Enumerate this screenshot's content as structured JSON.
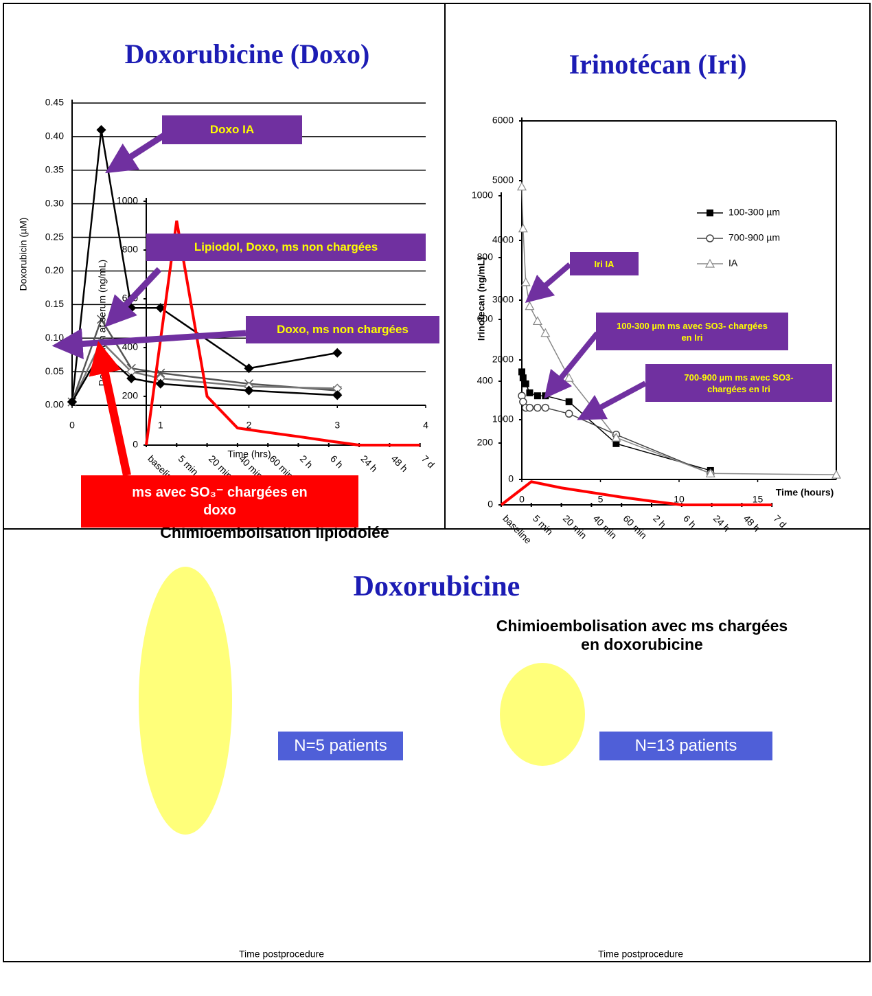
{
  "heading": "Doxorubicine",
  "chart_data": [
    {
      "type": "line",
      "title": "Doxorubicine (Doxo)",
      "xlabel": "Time (hrs)",
      "ylabel": "Doxorubicin (µM)",
      "xlim": [
        0,
        4
      ],
      "xticks": [
        0,
        1,
        2,
        3,
        4
      ],
      "ylim": [
        0,
        0.45
      ],
      "yticks": [
        {
          "value": 0,
          "label": "0.00"
        },
        0.05,
        {
          "value": 0.1,
          "label": "0.10"
        },
        0.15,
        {
          "value": 0.2,
          "label": "0.20"
        },
        0.25,
        {
          "value": 0.3,
          "label": "0.30"
        },
        0.35,
        {
          "value": 0.4,
          "label": "0.40"
        },
        0.45
      ],
      "grid": true,
      "series": [
        {
          "color": "#000000",
          "marker": "diamond",
          "x": [
            0,
            0.33,
            0.67,
            1,
            2,
            3
          ],
          "values": [
            0.005,
            0.41,
            0.145,
            0.145,
            0.055,
            0.078
          ]
        },
        {
          "color": "#555555",
          "marker": "x",
          "x": [
            0,
            0.33,
            0.67,
            1,
            2,
            3
          ],
          "values": [
            0.005,
            0.128,
            0.055,
            0.048,
            0.032,
            0.022
          ]
        },
        {
          "color": "#777777",
          "marker": "diamond-open",
          "x": [
            0,
            0.33,
            0.67,
            1,
            2,
            3
          ],
          "values": [
            0.005,
            0.095,
            0.05,
            0.04,
            0.028,
            0.025
          ]
        },
        {
          "color": "#000000",
          "marker": "diamond",
          "x": [
            0,
            0.33,
            0.67,
            1,
            2,
            3
          ],
          "values": [
            0.005,
            0.08,
            0.04,
            0.032,
            0.022,
            0.015
          ]
        }
      ],
      "annotations": [
        "Doxo IA",
        "Lipiodol, Doxo, ms non chargées",
        "Doxo, ms non chargées",
        "ms avec SO₃⁻ chargées en doxo"
      ]
    },
    {
      "type": "line",
      "title": "Irinotécan (Iri)",
      "xlabel": "Time (hours)",
      "ylabel": "Irinotecan (ng/mL)",
      "xlim": [
        0,
        20
      ],
      "xticks": [
        0,
        5,
        10,
        15
      ],
      "ylim": [
        0,
        6000
      ],
      "yticks": [
        0,
        1000,
        2000,
        3000,
        4000,
        5000,
        6000
      ],
      "legend": "upper right",
      "series": [
        {
          "name": "100-300 µm",
          "color": "#000000",
          "marker": "square",
          "x": [
            0,
            0.08,
            0.25,
            0.5,
            1,
            1.5,
            3,
            6,
            12
          ],
          "values": [
            1800,
            1700,
            1600,
            1450,
            1400,
            1400,
            1300,
            600,
            150
          ]
        },
        {
          "name": "700-900 µm",
          "color": "#444444",
          "marker": "circle",
          "x": [
            0,
            0.08,
            0.25,
            0.5,
            1,
            1.5,
            3,
            6,
            12
          ],
          "values": [
            1400,
            1300,
            1200,
            1200,
            1200,
            1200,
            1100,
            750,
            100
          ]
        },
        {
          "name": "IA",
          "color": "#888888",
          "marker": "triangle",
          "x": [
            0,
            0.08,
            0.25,
            0.5,
            1,
            1.5,
            3,
            6,
            12,
            20
          ],
          "values": [
            4900,
            4200,
            3300,
            2900,
            2650,
            2450,
            1700,
            700,
            100,
            80
          ]
        }
      ],
      "annotations": [
        "Iri IA",
        "100-300 µm  ms avec SO3- chargées en Iri",
        "700-900 µm ms avec SO3- chargées en Iri"
      ]
    },
    {
      "type": "line",
      "title": "Chimioembolisation lipiodolée",
      "xlabel": "Time postprocedure",
      "ylabel": "Doxorubicin at serum (ng/mL)",
      "categories": [
        "baseline",
        "5 min",
        "20 min",
        "40 min",
        "60 min",
        "2 h",
        "6 h",
        "24 h",
        "48 h",
        "7 d"
      ],
      "values": [
        0,
        920,
        200,
        70,
        52,
        35,
        17,
        0,
        0,
        0
      ],
      "color": "#ff0000",
      "ylim": [
        0,
        1000
      ],
      "yticks": [
        0,
        200,
        400,
        600,
        800,
        1000
      ],
      "annotations": [
        "N=5 patients"
      ]
    },
    {
      "type": "line",
      "title": "Chimioembolisation avec ms chargées en doxorubicine",
      "xlabel": "Time postprocedure",
      "categories": [
        "baseline",
        "5 min",
        "20 min",
        "40 min",
        "60 min",
        "2 h",
        "6 h",
        "24 h",
        "48 h",
        "7 d"
      ],
      "values": [
        0,
        75,
        55,
        40,
        25,
        12,
        0,
        0,
        0,
        0
      ],
      "color": "#ff0000",
      "ylim": [
        0,
        1000
      ],
      "yticks": [
        0,
        200,
        400,
        600,
        800,
        1000
      ],
      "annotations": [
        "N=13 patients"
      ]
    }
  ]
}
